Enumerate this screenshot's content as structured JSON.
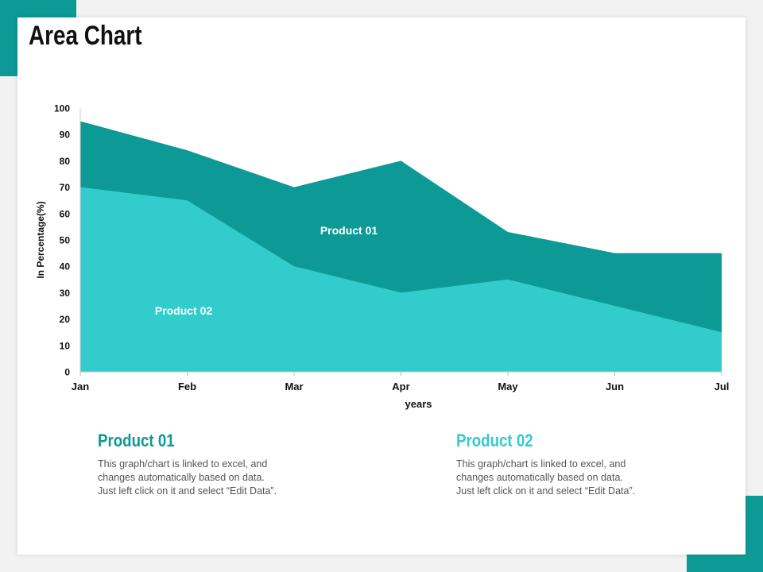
{
  "slide": {
    "title": "Area Chart"
  },
  "colors": {
    "accent": "#0d9a96",
    "product01": "#0d9a96",
    "product02": "#33cccc"
  },
  "chart_data": {
    "type": "area",
    "categories": [
      "Jan",
      "Feb",
      "Mar",
      "Apr",
      "May",
      "Jun",
      "Jul"
    ],
    "series": [
      {
        "name": "Product 01",
        "values": [
          95,
          84,
          70,
          80,
          53,
          45,
          45
        ]
      },
      {
        "name": "Product 02",
        "values": [
          70,
          65,
          40,
          30,
          35,
          25,
          15
        ]
      }
    ],
    "ylim": [
      0,
      100
    ],
    "yticks": [
      0,
      10,
      20,
      30,
      40,
      50,
      60,
      70,
      80,
      90,
      100
    ],
    "xlabel": "years",
    "ylabel": "In Percentage(%)",
    "labels": {
      "product01": "Product 01",
      "product02": "Product 02"
    }
  },
  "captions": [
    {
      "heading": "Product 01",
      "line1": "This graph/chart is linked to excel, and",
      "line2": "changes automatically based on data.",
      "line3": "Just left click on it and select “Edit Data”."
    },
    {
      "heading": "Product 02",
      "line1": "This graph/chart is linked to excel, and",
      "line2": "changes automatically based on data.",
      "line3": "Just left click on it and select “Edit Data”."
    }
  ]
}
